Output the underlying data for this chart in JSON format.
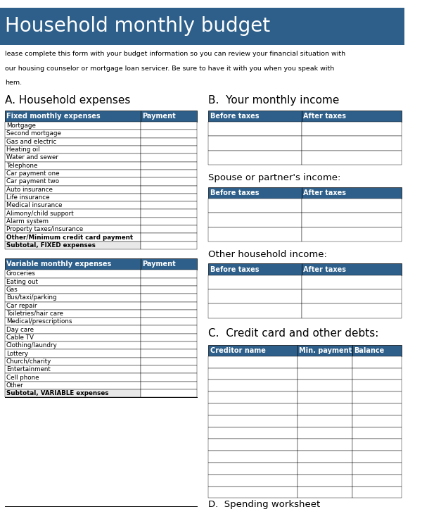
{
  "title": "Household monthly budget",
  "title_bg": "#2d5f8a",
  "title_color": "#ffffff",
  "title_fontsize": 20,
  "header_bg": "#2d5f8a",
  "header_color": "#ffffff",
  "intro_text": "lease complete this form with your budget information so you can review your financial situation with\nour housing counselor or mortgage loan servicer. Be sure to have it with you when you speak with\nhem.",
  "section_a_title": "A. Household expenses",
  "section_b_title": "B.  Your monthly income",
  "section_c_title": "C.  Credit card and other debts:",
  "fixed_header": [
    "Fixed monthly expenses",
    "Payment"
  ],
  "fixed_items": [
    "Mortgage",
    "Second mortgage",
    "Gas and electric",
    "Heating oil",
    "Water and sewer",
    "Telephone",
    "Car payment one",
    "Car payment two",
    "Auto insurance",
    "Life insurance",
    "Medical insurance",
    "Alimony/child support",
    "Alarm system",
    "Property taxes/insurance",
    "Other/Minimum credit card payment",
    "Subtotal, FIXED expenses"
  ],
  "variable_header": [
    "Variable monthly expenses",
    "Payment"
  ],
  "variable_items": [
    "Groceries",
    "Eating out",
    "Gas",
    "Bus/taxi/parking",
    "Car repair",
    "Toiletries/hair care",
    "Medical/prescriptions",
    "Day care",
    "Cable TV",
    "Clothing/laundry",
    "Lottery",
    "Church/charity",
    "Entertainment",
    "Cell phone",
    "Other",
    "Subtotal, VARIABLE expenses"
  ],
  "income_header": [
    "Before taxes",
    "After taxes"
  ],
  "spouse_income_title": "Spouse or partner's income:",
  "other_income_title": "Other household income:",
  "credit_header": [
    "Creditor name",
    "Min. payment",
    "Balance"
  ],
  "credit_rows": 12,
  "bg_color": "#ffffff",
  "table_line_color": "#000000",
  "bold_items": [
    "Other/Minimum credit card payment",
    "Subtotal, FIXED expenses",
    "Subtotal, VARIABLE expenses"
  ],
  "fig_width": 6.0,
  "fig_height": 7.3
}
